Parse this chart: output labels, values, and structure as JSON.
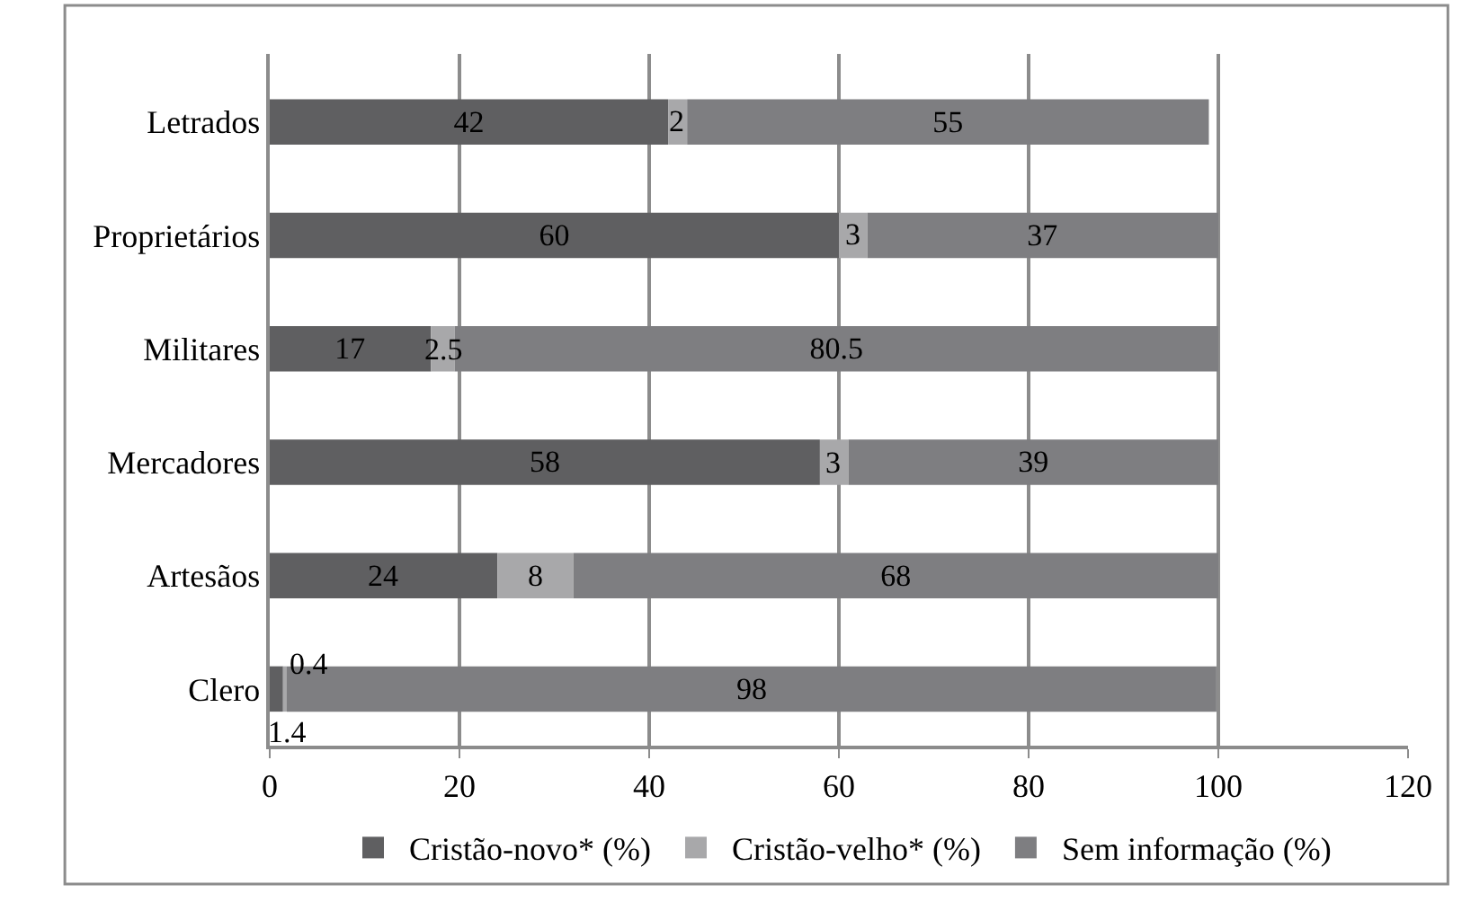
{
  "chart_data": {
    "type": "bar",
    "orientation": "horizontal",
    "stacked": true,
    "data_labels": true,
    "categories": [
      "Letrados",
      "Proprietários",
      "Militares",
      "Mercadores",
      "Artesãos",
      "Clero"
    ],
    "series": [
      {
        "name": "Cristão-novo* (%)",
        "color": "#5f5f61",
        "values": [
          42,
          60,
          17,
          58,
          24,
          1.4
        ]
      },
      {
        "name": "Cristão-velho* (%)",
        "color": "#a8a8aa",
        "values": [
          2,
          3,
          2.5,
          3,
          8,
          0.4
        ]
      },
      {
        "name": "Sem informação (%)",
        "color": "#7e7e81",
        "values": [
          55,
          37,
          80.5,
          39,
          68,
          98
        ]
      }
    ],
    "xlim": [
      0,
      120
    ],
    "xticks": [
      0,
      20,
      40,
      60,
      80,
      100,
      120
    ],
    "grid": "x",
    "legend": "bottom"
  }
}
